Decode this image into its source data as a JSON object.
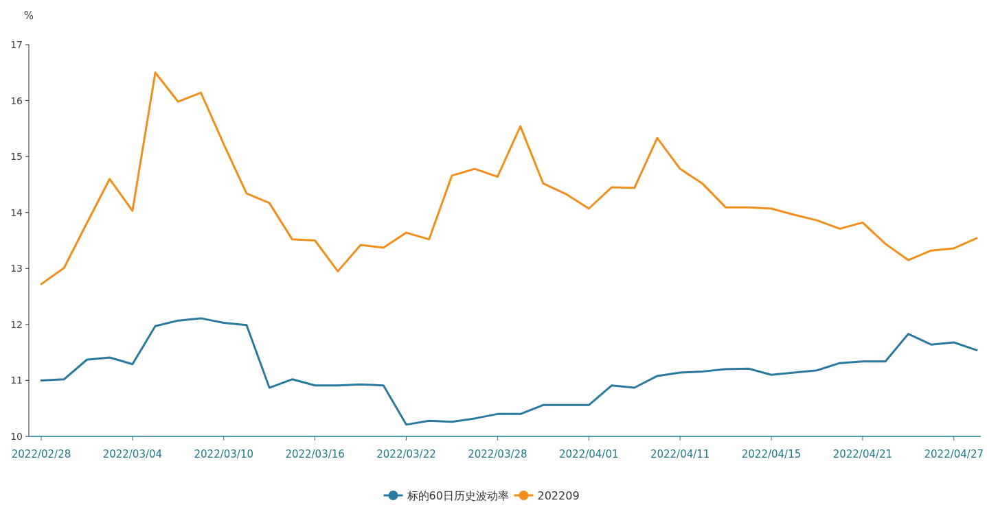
{
  "chart_data": {
    "type": "line",
    "ylabel": "%",
    "legend": "bottom",
    "ylim": [
      10,
      17
    ],
    "yticks": [
      10,
      11,
      12,
      13,
      14,
      15,
      16,
      17
    ],
    "categories": [
      "2022/02/28",
      null,
      null,
      null,
      "2022/03/04",
      null,
      null,
      null,
      "2022/03/10",
      null,
      null,
      null,
      "2022/03/16",
      null,
      null,
      null,
      "2022/03/22",
      null,
      null,
      null,
      "2022/03/28",
      null,
      null,
      null,
      "2022/04/01",
      null,
      null,
      null,
      "2022/04/11",
      null,
      null,
      null,
      "2022/04/15",
      null,
      null,
      null,
      "2022/04/21",
      null,
      null,
      null,
      "2022/04/27",
      null
    ],
    "series": [
      {
        "name": "标的60日历史波动率",
        "color": "#2a7aa0",
        "values": [
          11.0,
          11.02,
          11.37,
          11.41,
          11.29,
          11.97,
          12.07,
          12.11,
          12.03,
          11.99,
          10.87,
          11.02,
          10.91,
          10.91,
          10.93,
          10.91,
          10.21,
          10.28,
          10.26,
          10.32,
          10.4,
          10.4,
          10.56,
          10.56,
          10.56,
          10.91,
          10.87,
          11.08,
          11.14,
          11.16,
          11.2,
          11.21,
          11.1,
          11.14,
          11.18,
          11.31,
          11.34,
          11.34,
          11.83,
          11.64,
          11.68,
          11.54
        ]
      },
      {
        "name": "202209",
        "color": "#f28e1c",
        "values": [
          12.72,
          13.01,
          13.81,
          14.6,
          14.03,
          16.5,
          15.98,
          16.14,
          15.22,
          14.34,
          14.17,
          13.52,
          13.5,
          12.95,
          13.42,
          13.37,
          13.64,
          13.52,
          14.66,
          14.78,
          14.64,
          15.54,
          14.52,
          14.33,
          14.07,
          14.45,
          14.44,
          15.33,
          14.78,
          14.51,
          14.09,
          14.09,
          14.07,
          13.96,
          13.86,
          13.71,
          13.82,
          13.44,
          13.15,
          13.32,
          13.36,
          13.54
        ]
      }
    ]
  }
}
